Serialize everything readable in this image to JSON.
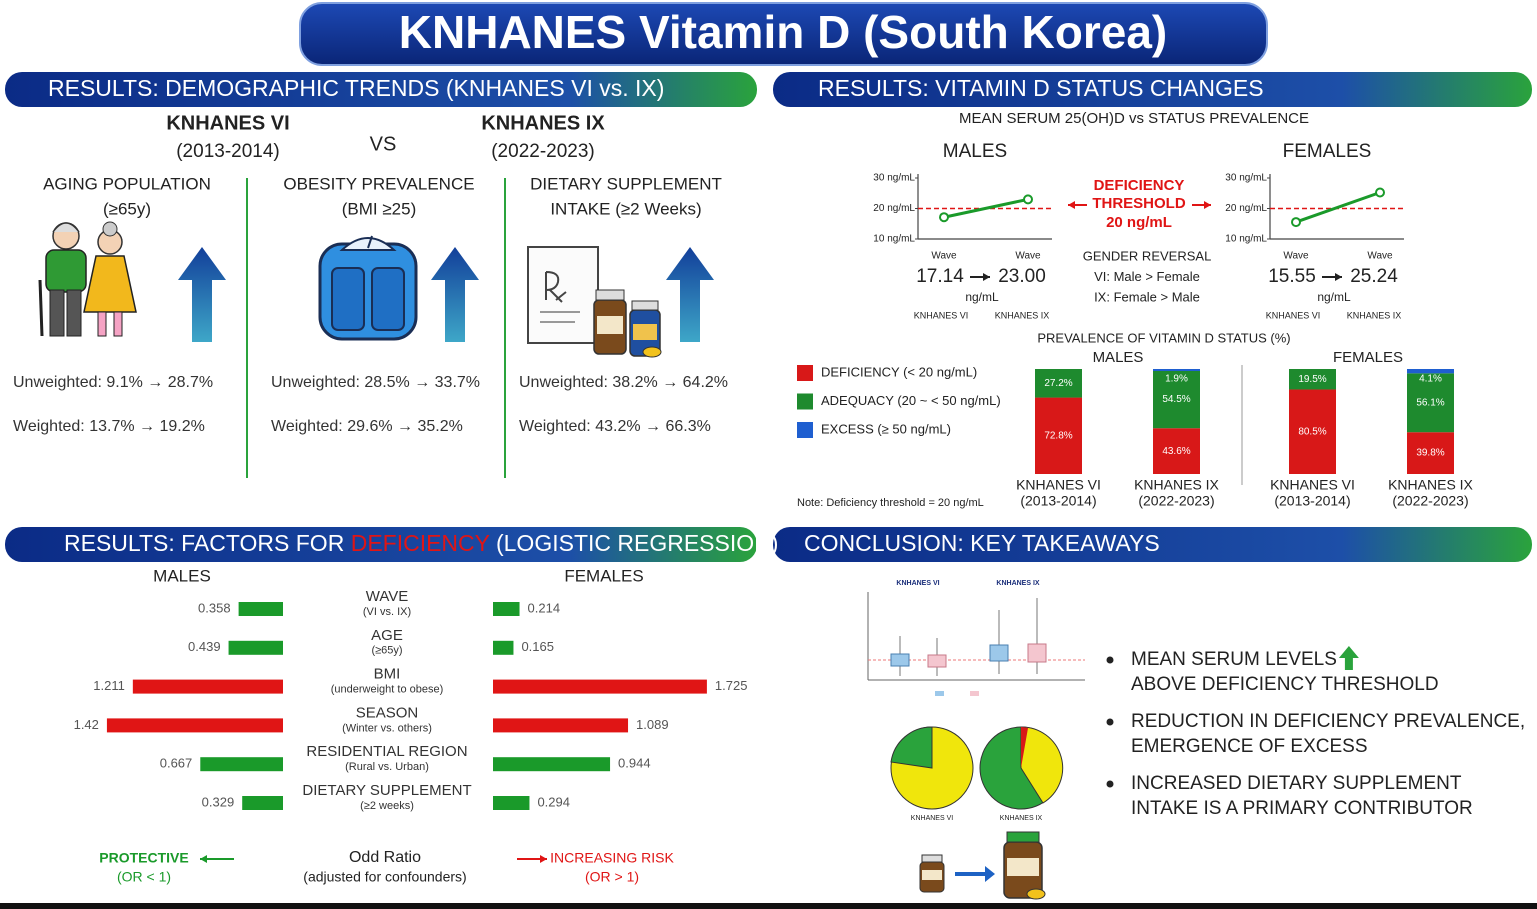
{
  "title": "KNHANES Vitamin D (South Korea)",
  "demographics": {
    "header": "RESULTS: DEMOGRAPHIC TRENDS (KNHANES VI vs. IX)",
    "wave_vi": {
      "name": "KNHANES VI",
      "years": "(2013-2014)"
    },
    "vs": "VS",
    "wave_ix": {
      "name": "KNHANES IX",
      "years": "(2022-2023)"
    },
    "items": [
      {
        "title": "AGING POPULATION",
        "subtitle": "(≥65y)",
        "unweighted": "Unweighted: 9.1% → 28.7%",
        "weighted": "Weighted: 13.7% → 19.2%"
      },
      {
        "title": "OBESITY PREVALENCE",
        "subtitle": "(BMI ≥25)",
        "unweighted": "Unweighted: 28.5% → 33.7%",
        "weighted": "Weighted: 29.6% → 35.2%"
      },
      {
        "title": "DIETARY SUPPLEMENT",
        "subtitle": "INTAKE (≥2 Weeks)",
        "unweighted": "Unweighted: 38.2% → 64.2%",
        "weighted": "Weighted: 43.2% → 66.3%"
      }
    ]
  },
  "status": {
    "header": "RESULTS: VITAMIN D STATUS CHANGES",
    "subtitle": "MEAN SERUM 25(OH)D vs STATUS PREVALENCE",
    "mean_serum": [
      {
        "title": "MALES",
        "ylim": [
          10,
          30
        ],
        "yticks": [
          {
            "value": 10,
            "label": "10 ng/mL"
          },
          {
            "value": 20,
            "label": "20 ng/mL"
          },
          {
            "value": 30,
            "label": "30 ng/mL"
          }
        ],
        "x": [
          "Wave",
          "Wave"
        ],
        "values": [
          17.14,
          23
        ],
        "value_labels": [
          "17.14",
          "23.00"
        ],
        "unit": "ng/mL",
        "waves": [
          "KNHANES VI",
          "KNHANES IX"
        ],
        "color": "#1a9a2a"
      },
      {
        "title": "FEMALES",
        "ylim": [
          10,
          30
        ],
        "yticks": [
          {
            "value": 10,
            "label": "10 ng/mL"
          },
          {
            "value": 20,
            "label": "20 ng/mL"
          },
          {
            "value": 30,
            "label": "30 ng/mL"
          }
        ],
        "x": [
          "Wave",
          "Wave"
        ],
        "values": [
          15.55,
          25.24
        ],
        "value_labels": [
          "15.55",
          "25.24"
        ],
        "unit": "ng/mL",
        "waves": [
          "KNHANES VI",
          "KNHANES IX"
        ],
        "color": "#1a9a2a"
      }
    ],
    "threshold": {
      "lines": [
        "DEFICIENCY",
        "THRESHOLD"
      ],
      "value": 20,
      "label": "20 ng/mL",
      "color": "#e01515"
    },
    "gender_reversal": [
      "GENDER REVERSAL",
      "VI: Male > Female",
      "IX: Female > Male"
    ],
    "prevalence": {
      "title": "PREVALENCE OF VITAMIN D STATUS (%)",
      "ylim": [
        0,
        100
      ],
      "legend": [
        {
          "name": "DEFICIENCY (< 20 ng/mL)",
          "color": "#d81818"
        },
        {
          "name": "ADEQUACY (20 ~ < 50 ng/mL)",
          "color": "#1e8a2e"
        },
        {
          "name": "EXCESS (≥ 50 ng/mL)",
          "color": "#1f5fd0"
        }
      ],
      "groups": [
        {
          "name": "MALES",
          "bars": [
            {
              "wave": "KNHANES VI",
              "years": "(2013-2014)",
              "values": [
                72.8,
                27.2,
                null
              ],
              "value_labels": [
                "72.8%",
                "27.2%",
                null
              ]
            },
            {
              "wave": "KNHANES IX",
              "years": "(2022-2023)",
              "values": [
                43.6,
                54.5,
                1.9
              ],
              "value_labels": [
                "43.6%",
                "54.5%",
                "1.9%"
              ]
            }
          ]
        },
        {
          "name": "FEMALES",
          "bars": [
            {
              "wave": "KNHANES VI",
              "years": "(2013-2014)",
              "values": [
                80.5,
                19.5,
                null
              ],
              "value_labels": [
                "80.5%",
                "19.5%",
                null
              ]
            },
            {
              "wave": "KNHANES IX",
              "years": "(2022-2023)",
              "values": [
                39.8,
                56.1,
                4.1
              ],
              "value_labels": [
                "39.8%",
                "56.1%",
                "4.1%"
              ]
            }
          ]
        }
      ],
      "note": "Note: Deficiency threshold = 20 ng/mL"
    }
  },
  "factors": {
    "header_parts": [
      "RESULTS: FACTORS FOR ",
      "DEFICIENCY",
      " (LOGISTIC REGRESSION)"
    ],
    "males_title": "MALES",
    "females_title": "FEMALES",
    "rows": [
      {
        "name": "WAVE",
        "detail": "(VI vs. IX)",
        "male": 0.358,
        "female": 0.214
      },
      {
        "name": "AGE",
        "detail": "(≥65y)",
        "male": 0.439,
        "female": 0.165
      },
      {
        "name": "BMI",
        "detail": "(underweight to obese)",
        "male": 1.211,
        "female": 1.725
      },
      {
        "name": "SEASON",
        "detail": "(Winter vs. others)",
        "male": 1.42,
        "female": 1.089
      },
      {
        "name": "RESIDENTIAL REGION",
        "detail": "(Rural vs. Urban)",
        "male": 0.667,
        "female": 0.944
      },
      {
        "name": "DIETARY SUPPLEMENT",
        "detail": "(≥2 weeks)",
        "male": 0.329,
        "female": 0.294
      }
    ],
    "protective": {
      "label": "PROTECTIVE",
      "note": "(OR < 1)",
      "color": "#1a9a2a"
    },
    "risk": {
      "label": "INCREASING RISK",
      "note": "(OR > 1)",
      "color": "#e01515"
    },
    "center": [
      "Odd Ratio",
      "(adjusted for confounders)"
    ]
  },
  "conclusion": {
    "header": "CONCLUSION: KEY TAKEAWAYS",
    "figure_labels": [
      "KNHANES VI",
      "KNHANES IX"
    ],
    "bullets": [
      [
        "MEAN SERUM LEVELS",
        "ABOVE DEFICIENCY THRESHOLD"
      ],
      [
        "REDUCTION IN DEFICIENCY PREVALENCE,",
        "EMERGENCE OF EXCESS"
      ],
      [
        "INCREASED DIETARY SUPPLEMENT",
        "INTAKE IS A PRIMARY CONTRIBUTOR"
      ]
    ]
  }
}
